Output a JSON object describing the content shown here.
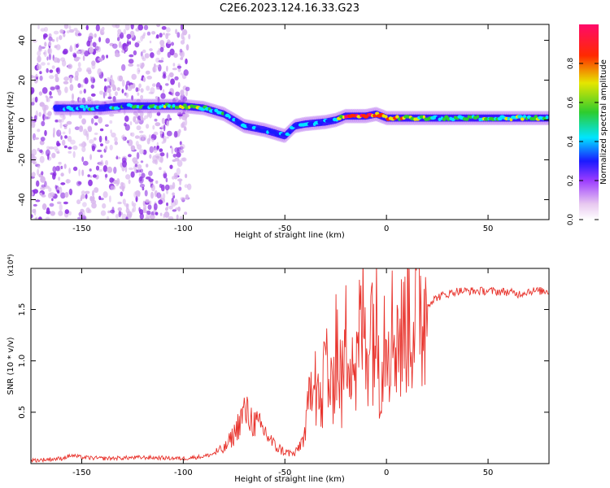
{
  "title": "C2E6.2023.124.16.33.G23",
  "chart_data": [
    {
      "type": "heatmap",
      "xlabel": "Height of straight line (km)",
      "ylabel": "Frequency (Hz)",
      "xlim": [
        -175,
        80
      ],
      "ylim": [
        -50,
        48
      ],
      "xticks": [
        -150,
        -100,
        -50,
        0,
        50
      ],
      "yticks": [
        -40,
        -20,
        0,
        20,
        40
      ],
      "colorbar": {
        "label": "Normalized spectral amplitude",
        "range": [
          0.0,
          1.0
        ],
        "ticks": [
          0.0,
          0.2,
          0.4,
          0.6,
          0.8
        ],
        "tick_labels": [
          "0.0",
          "0.2",
          "0.4",
          "0.6",
          "0.8"
        ],
        "colormap": [
          "#f3e6f7",
          "#9c3cff",
          "#1a1aff",
          "#00e5ff",
          "#2ecc2e",
          "#e6e600",
          "#ff2a00",
          "#ff0a6a"
        ]
      },
      "ridge": {
        "x": [
          -160,
          -150,
          -140,
          -130,
          -115,
          -100,
          -90,
          -80,
          -70,
          -60,
          -50,
          -45,
          -40,
          -30,
          -25,
          -20,
          -10,
          -5,
          0,
          10,
          20,
          40,
          60,
          80
        ],
        "freq": [
          6,
          6,
          6,
          7,
          7,
          7,
          6,
          3,
          -3,
          -5,
          -8,
          -3,
          -2,
          -1,
          0,
          2,
          2,
          3,
          1,
          1,
          1,
          1,
          1,
          1
        ],
        "amplitude": [
          0.35,
          0.4,
          0.35,
          0.45,
          0.45,
          0.6,
          0.5,
          0.4,
          0.35,
          0.35,
          0.35,
          0.3,
          0.3,
          0.3,
          0.3,
          0.9,
          0.85,
          0.8,
          0.75,
          0.7,
          0.5,
          0.5,
          0.55,
          0.6
        ]
      }
    },
    {
      "type": "line",
      "xlabel": "Height of straight line (km)",
      "ylabel": "SNR (10 * v/v)",
      "y_multiplier": "(x10⁴)",
      "xlim": [
        -175,
        80
      ],
      "ylim": [
        0,
        1.9
      ],
      "xticks": [
        -150,
        -100,
        -50,
        0,
        50
      ],
      "yticks": [
        0.5,
        1.0,
        1.5
      ],
      "ytick_labels": [
        "0.5",
        "1.0",
        "1.5"
      ],
      "color": "#e8322b",
      "series": [
        {
          "x": [
            -175,
            -160,
            -155,
            -150,
            -140,
            -120,
            -100,
            -90,
            -80,
            -75,
            -70,
            -65,
            -60,
            -55,
            -50,
            -45,
            -40,
            -38,
            -35,
            -32,
            -30,
            -27,
            -25,
            -22,
            -20,
            -18,
            -15,
            -12,
            -10,
            -8,
            -5,
            -3,
            0,
            3,
            5,
            8,
            10,
            12,
            15,
            18,
            20,
            25,
            30,
            35,
            40,
            50,
            60,
            65,
            70,
            80
          ],
          "y": [
            0.03,
            0.05,
            0.08,
            0.06,
            0.05,
            0.06,
            0.05,
            0.07,
            0.12,
            0.25,
            0.45,
            0.35,
            0.28,
            0.15,
            0.1,
            0.08,
            0.25,
            0.6,
            0.9,
            0.45,
            1.1,
            0.6,
            1.3,
            0.7,
            1.15,
            1.35,
            0.85,
            1.45,
            1.1,
            1.5,
            1.3,
            0.95,
            1.5,
            1.25,
            1.35,
            1.15,
            1.6,
            1.4,
            1.6,
            1.45,
            1.55,
            1.62,
            1.65,
            1.68,
            1.68,
            1.68,
            1.67,
            1.65,
            1.68,
            1.68
          ]
        }
      ]
    }
  ]
}
